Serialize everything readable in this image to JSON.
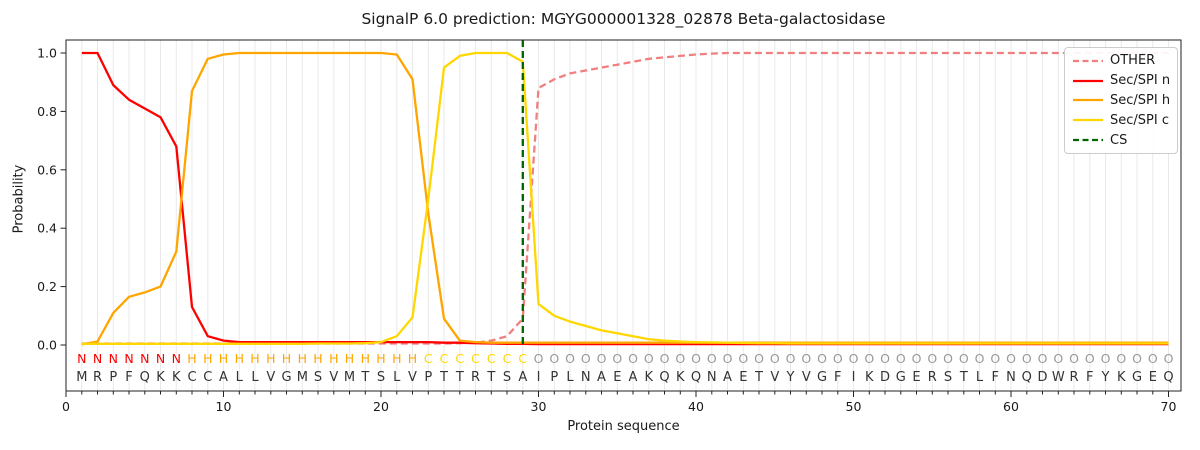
{
  "figure": {
    "title": "SignalP 6.0 prediction: MGYG000001328_02878 Beta-galactosidase",
    "xlabel": "Protein sequence",
    "ylabel": "Probability"
  },
  "legend": {
    "position": "upper right",
    "entries": [
      {
        "label": "OTHER",
        "color": "#f08080",
        "dash": "7 4"
      },
      {
        "label": "Sec/SPI n",
        "color": "#ff0000",
        "dash": null
      },
      {
        "label": "Sec/SPI h",
        "color": "#ffa500",
        "dash": null
      },
      {
        "label": "Sec/SPI c",
        "color": "#ffd700",
        "dash": null
      },
      {
        "label": "CS",
        "color": "#006400",
        "dash": "7 4"
      }
    ]
  },
  "chart_data": {
    "type": "line",
    "title": "SignalP 6.0 prediction: MGYG000001328_02878 Beta-galactosidase",
    "xlabel": "Protein sequence",
    "ylabel": "Probability",
    "xlim": [
      0,
      70.8
    ],
    "ylim": [
      -0.158,
      1.045
    ],
    "grid": "vertical gridline at every residue position",
    "legend_position": "upper right",
    "x_ticks": [
      0,
      10,
      20,
      30,
      40,
      50,
      60,
      70
    ],
    "x_tick_labels": [
      "0",
      "10",
      "20",
      "30",
      "40",
      "50",
      "60",
      "70"
    ],
    "y_ticks": [
      0,
      0.2,
      0.4,
      0.6,
      0.8,
      1.0
    ],
    "y_tick_labels": [
      "0.0",
      "0.2",
      "0.4",
      "0.6",
      "0.8",
      "1.0"
    ],
    "x": [
      1,
      2,
      3,
      4,
      5,
      6,
      7,
      8,
      9,
      10,
      11,
      12,
      13,
      14,
      15,
      16,
      17,
      18,
      19,
      20,
      21,
      22,
      23,
      24,
      25,
      26,
      27,
      28,
      29,
      30,
      31,
      32,
      33,
      34,
      35,
      36,
      37,
      38,
      39,
      40,
      41,
      42,
      43,
      44,
      45,
      46,
      47,
      48,
      49,
      50,
      51,
      52,
      53,
      54,
      55,
      56,
      57,
      58,
      59,
      60,
      61,
      62,
      63,
      64,
      65,
      66,
      67,
      68,
      69,
      70
    ],
    "sequence": "MRPFQKKCCALLVGMSVMTSLVPTTRTSAIPLNAEAKQKQNAETVYVGFIKDGERSTLFNQDWRFYKGEQ",
    "regions": "NNNNNNNHHHHHHHHHHHHHHHCCCCCCCOOOOOOOOOOOOOOOOOOOOOOOOOOOOOOOOOOOOOOOOO",
    "region_colors": {
      "N": "#ff0000",
      "H": "#ffa500",
      "C": "#ffd700",
      "O": "#999999"
    },
    "sequence_color": "#333333",
    "series": [
      {
        "name": "OTHER",
        "color": "#f08080",
        "dash": "7 4",
        "values": [
          0.005,
          0.005,
          0.005,
          0.005,
          0.005,
          0.005,
          0.005,
          0.005,
          0.005,
          0.005,
          0.005,
          0.005,
          0.005,
          0.005,
          0.005,
          0.005,
          0.005,
          0.005,
          0.005,
          0.005,
          0.005,
          0.005,
          0.005,
          0.005,
          0.006,
          0.008,
          0.015,
          0.03,
          0.09,
          0.88,
          0.91,
          0.93,
          0.94,
          0.95,
          0.96,
          0.97,
          0.98,
          0.985,
          0.99,
          0.995,
          0.998,
          1.0,
          1.0,
          1.0,
          1.0,
          1.0,
          1.0,
          1.0,
          1.0,
          1.0,
          1.0,
          1.0,
          1.0,
          1.0,
          1.0,
          1.0,
          1.0,
          1.0,
          1.0,
          1.0,
          1.0,
          1.0,
          1.0,
          1.0,
          1.0,
          1.0,
          1.0,
          1.0,
          1.0,
          1.0
        ]
      },
      {
        "name": "Sec/SPI n",
        "color": "#ff0000",
        "dash": null,
        "values": [
          1.0,
          1.0,
          0.89,
          0.84,
          0.81,
          0.78,
          0.68,
          0.13,
          0.03,
          0.015,
          0.01,
          0.01,
          0.01,
          0.01,
          0.01,
          0.01,
          0.01,
          0.01,
          0.01,
          0.01,
          0.01,
          0.01,
          0.01,
          0.008,
          0.008,
          0.006,
          0.005,
          0.004,
          0.004,
          0.003,
          0.003,
          0.003,
          0.003,
          0.003,
          0.003,
          0.003,
          0.003,
          0.003,
          0.003,
          0.003,
          0.003,
          0.003,
          0.003,
          0.003,
          0.003,
          0.003,
          0.003,
          0.003,
          0.003,
          0.003,
          0.003,
          0.003,
          0.003,
          0.003,
          0.003,
          0.003,
          0.003,
          0.003,
          0.003,
          0.003,
          0.003,
          0.003,
          0.003,
          0.003,
          0.003,
          0.003,
          0.003,
          0.003,
          0.003,
          0.003
        ]
      },
      {
        "name": "Sec/SPI h",
        "color": "#ffa500",
        "dash": null,
        "values": [
          0.002,
          0.012,
          0.11,
          0.165,
          0.18,
          0.2,
          0.32,
          0.87,
          0.98,
          0.995,
          1.0,
          1.0,
          1.0,
          1.0,
          1.0,
          1.0,
          1.0,
          1.0,
          1.0,
          1.0,
          0.995,
          0.91,
          0.45,
          0.09,
          0.015,
          0.01,
          0.008,
          0.008,
          0.008,
          0.008,
          0.008,
          0.008,
          0.008,
          0.008,
          0.008,
          0.008,
          0.008,
          0.008,
          0.008,
          0.008,
          0.008,
          0.008,
          0.008,
          0.008,
          0.008,
          0.008,
          0.008,
          0.008,
          0.008,
          0.008,
          0.008,
          0.008,
          0.008,
          0.008,
          0.008,
          0.008,
          0.008,
          0.008,
          0.008,
          0.008,
          0.008,
          0.008,
          0.008,
          0.008,
          0.008,
          0.008,
          0.008,
          0.008,
          0.008,
          0.008
        ]
      },
      {
        "name": "Sec/SPI c",
        "color": "#ffd700",
        "dash": null,
        "values": [
          0.004,
          0.004,
          0.004,
          0.004,
          0.004,
          0.004,
          0.004,
          0.004,
          0.004,
          0.004,
          0.004,
          0.004,
          0.004,
          0.004,
          0.004,
          0.005,
          0.005,
          0.005,
          0.006,
          0.01,
          0.03,
          0.095,
          0.5,
          0.95,
          0.99,
          1.0,
          1.0,
          1.0,
          0.97,
          0.14,
          0.1,
          0.08,
          0.065,
          0.05,
          0.04,
          0.03,
          0.02,
          0.015,
          0.012,
          0.01,
          0.009,
          0.008,
          0.007,
          0.006,
          0.006,
          0.005,
          0.005,
          0.005,
          0.005,
          0.005,
          0.005,
          0.005,
          0.005,
          0.005,
          0.005,
          0.005,
          0.005,
          0.005,
          0.005,
          0.005,
          0.005,
          0.005,
          0.005,
          0.005,
          0.005,
          0.005,
          0.005,
          0.005,
          0.005,
          0.005
        ]
      }
    ],
    "cs_marker": {
      "name": "CS",
      "position": 29,
      "color": "#006400",
      "dash": "7 4"
    }
  }
}
